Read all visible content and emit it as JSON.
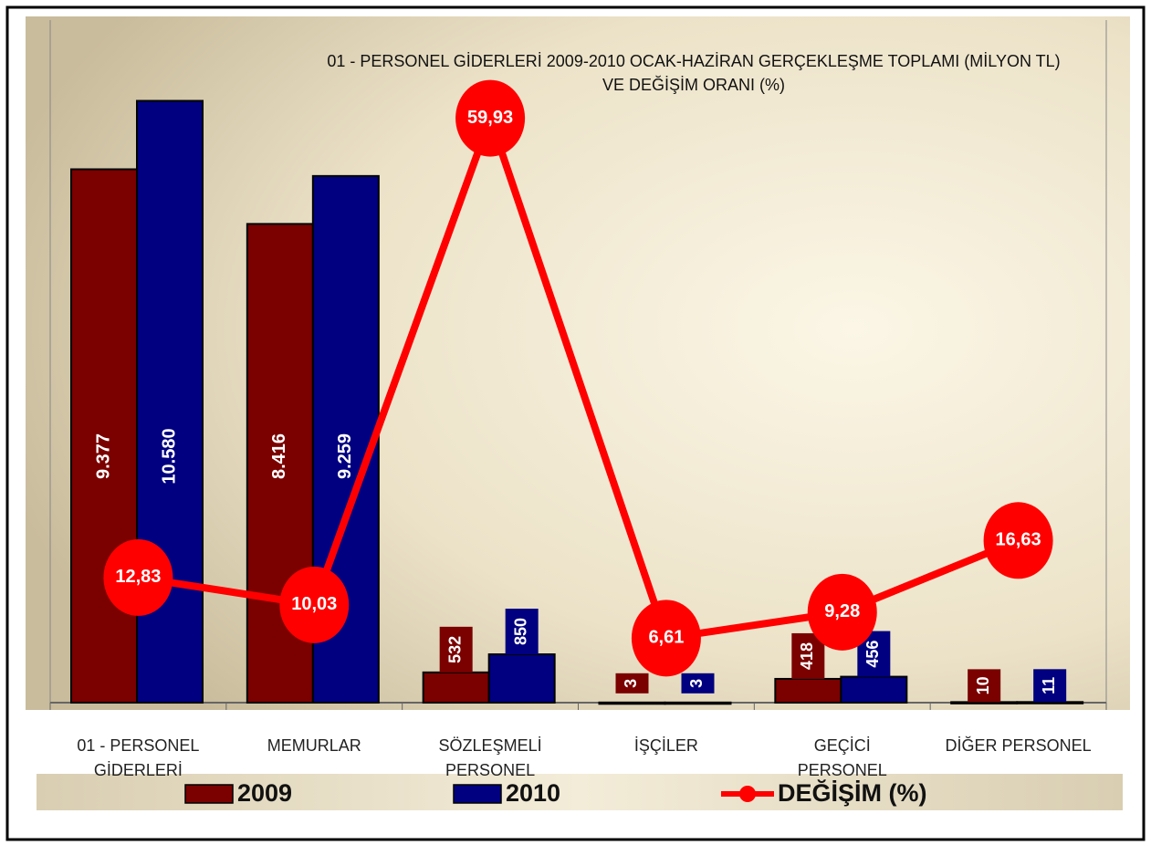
{
  "chart_data": {
    "type": "bar",
    "title": [
      "01 - PERSONEL  GİDERLERİ 2009-2010 OCAK-HAZİRAN GERÇEKLEŞME TOPLAMI (MİLYON TL)",
      "VE DEĞİŞİM ORANI (%)"
    ],
    "categories": [
      [
        "01 - PERSONEL",
        "GİDERLERİ"
      ],
      [
        "MEMURLAR"
      ],
      [
        "SÖZLEŞMELİ",
        "PERSONEL"
      ],
      [
        "İŞÇİLER"
      ],
      [
        "GEÇİCİ",
        "PERSONEL"
      ],
      [
        "DİĞER PERSONEL"
      ]
    ],
    "series": [
      {
        "name": "2009",
        "type": "bar",
        "color": "#7b0000",
        "values": [
          9377,
          8416,
          532,
          3,
          418,
          10
        ],
        "value_labels": [
          "9.377",
          "8.416",
          "532",
          "3",
          "418",
          "10"
        ]
      },
      {
        "name": "2010",
        "type": "bar",
        "color": "#000080",
        "values": [
          10580,
          9259,
          850,
          3,
          456,
          11
        ],
        "value_labels": [
          "10.580",
          "9.259",
          "850",
          "3",
          "456",
          "11"
        ]
      },
      {
        "name": "DEĞİŞİM (%)",
        "type": "line",
        "axis": "y2",
        "color": "#ff0000",
        "values": [
          12.83,
          10.03,
          59.93,
          6.61,
          9.28,
          16.63
        ],
        "value_labels": [
          "12,83",
          "10,03",
          "59,93",
          "6,61",
          "9,28",
          "16,63"
        ]
      }
    ],
    "ylim": [
      0,
      12000
    ],
    "y2lim": [
      0,
      70
    ],
    "legend": "bottom"
  }
}
